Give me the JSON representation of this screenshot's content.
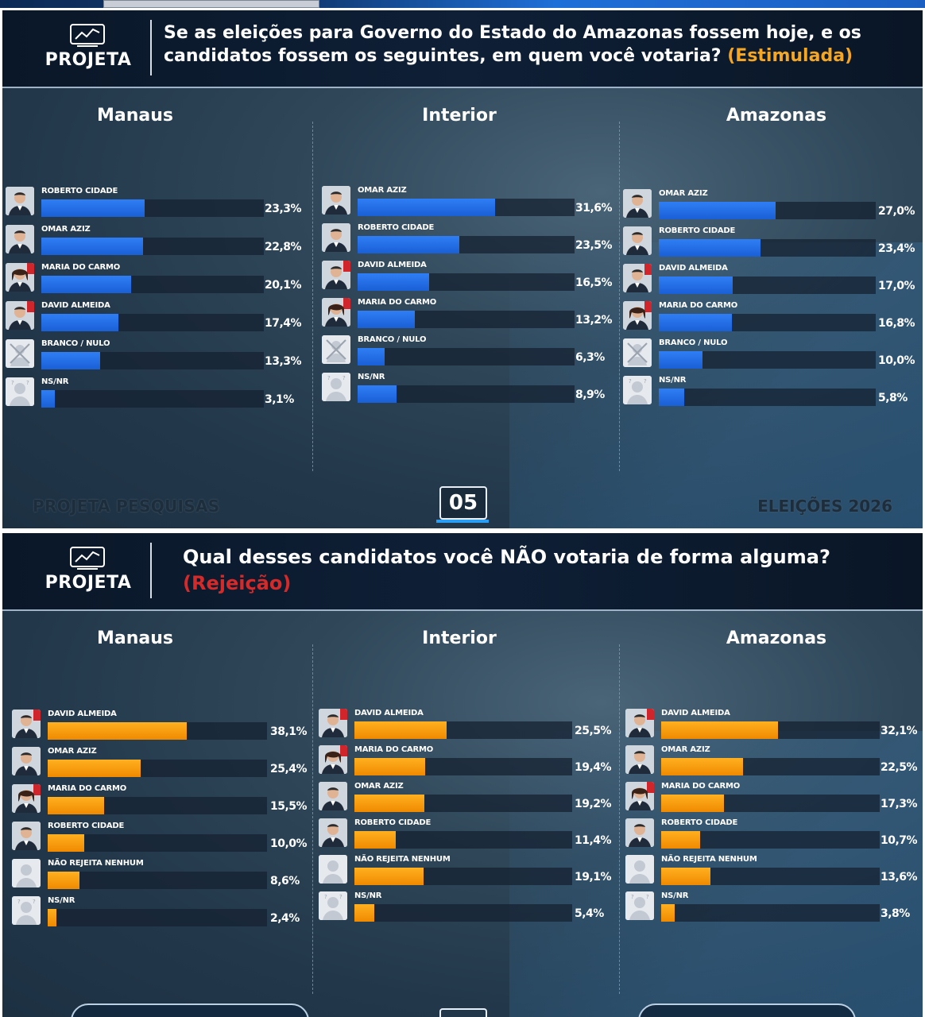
{
  "slides": [
    {
      "logo_text": "PROJETA",
      "title": "Se as eleições para Governo do Estado do Amazonas fossem hoje, e os candidatos fossem os seguintes, em quem você votaria?",
      "title_tag": "(Estimulada)",
      "footer_left": "PROJETA PESQUISAS",
      "footer_right": "ELEIÇÕES 2026",
      "page_number": "05"
    },
    {
      "logo_text": "PROJETA",
      "title": "Qual desses candidatos você NÃO votaria de forma alguma?",
      "title_tag": "(Rejeição)"
    }
  ],
  "colors": {
    "estimulada_bar": "#1a5fd6",
    "rejeicao_bar": "#f08a00",
    "estimulada_tag": "#f5a623",
    "rejeicao_tag": "#d42a2a"
  },
  "chart_data": [
    {
      "type": "bar",
      "orientation": "horizontal",
      "title": "Manaus",
      "categories": [
        "ROBERTO CIDADE",
        "OMAR AZIZ",
        "MARIA DO CARMO",
        "DAVID ALMEIDA",
        "BRANCO / NULO",
        "NS/NR"
      ],
      "values": [
        23.3,
        22.8,
        20.1,
        17.4,
        13.3,
        3.1
      ],
      "labels": [
        "23,3%",
        "22,8%",
        "20,1%",
        "17,4%",
        "13,3%",
        "3,1%"
      ],
      "xlim": [
        0,
        50
      ]
    },
    {
      "type": "bar",
      "orientation": "horizontal",
      "title": "Interior",
      "categories": [
        "OMAR AZIZ",
        "ROBERTO CIDADE",
        "DAVID ALMEIDA",
        "MARIA DO CARMO",
        "BRANCO / NULO",
        "NS/NR"
      ],
      "values": [
        31.6,
        23.5,
        16.5,
        13.2,
        6.3,
        8.9
      ],
      "labels": [
        "31,6%",
        "23,5%",
        "16,5%",
        "13,2%",
        "6,3%",
        "8,9%"
      ],
      "xlim": [
        0,
        50
      ]
    },
    {
      "type": "bar",
      "orientation": "horizontal",
      "title": "Amazonas",
      "categories": [
        "OMAR AZIZ",
        "ROBERTO CIDADE",
        "DAVID ALMEIDA",
        "MARIA DO CARMO",
        "BRANCO / NULO",
        "NS/NR"
      ],
      "values": [
        27.0,
        23.4,
        17.0,
        16.8,
        10.0,
        5.8
      ],
      "labels": [
        "27,0%",
        "23,4%",
        "17,0%",
        "16,8%",
        "10,0%",
        "5,8%"
      ],
      "xlim": [
        0,
        50
      ]
    },
    {
      "type": "bar",
      "orientation": "horizontal",
      "title": "Manaus",
      "categories": [
        "DAVID ALMEIDA",
        "OMAR AZIZ",
        "MARIA DO CARMO",
        "ROBERTO CIDADE",
        "NÃO REJEITA NENHUM",
        "NS/NR"
      ],
      "values": [
        38.1,
        25.4,
        15.5,
        10.0,
        8.6,
        2.4
      ],
      "labels": [
        "38,1%",
        "25,4%",
        "15,5%",
        "10,0%",
        "8,6%",
        "2,4%"
      ],
      "xlim": [
        0,
        60
      ]
    },
    {
      "type": "bar",
      "orientation": "horizontal",
      "title": "Interior",
      "categories": [
        "DAVID ALMEIDA",
        "MARIA DO CARMO",
        "OMAR AZIZ",
        "ROBERTO CIDADE",
        "NÃO REJEITA NENHUM",
        "NS/NR"
      ],
      "values": [
        25.5,
        19.4,
        19.2,
        11.4,
        19.1,
        5.4
      ],
      "labels": [
        "25,5%",
        "19,4%",
        "19,2%",
        "11,4%",
        "19,1%",
        "5,4%"
      ],
      "xlim": [
        0,
        60
      ]
    },
    {
      "type": "bar",
      "orientation": "horizontal",
      "title": "Amazonas",
      "categories": [
        "DAVID ALMEIDA",
        "OMAR AZIZ",
        "MARIA DO CARMO",
        "ROBERTO CIDADE",
        "NÃO REJEITA NENHUM",
        "NS/NR"
      ],
      "values": [
        32.1,
        22.5,
        17.3,
        10.7,
        13.6,
        3.8
      ],
      "labels": [
        "32,1%",
        "22,5%",
        "17,3%",
        "10,7%",
        "13,6%",
        "3,8%"
      ],
      "xlim": [
        0,
        60
      ]
    }
  ]
}
